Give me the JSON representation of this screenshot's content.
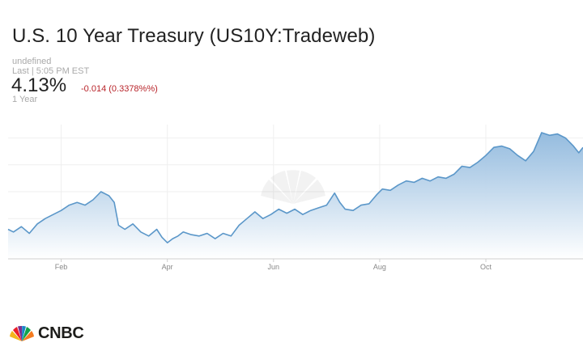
{
  "header": {
    "title": "U.S. 10 Year Treasury (US10Y:Tradeweb)",
    "source_line": "undefined",
    "last_line": "Last | 5:05 PM EST",
    "price": "4.13%",
    "change": "-0.014 (0.3378%%)",
    "range_label": "1 Year"
  },
  "colors": {
    "line": "#5b97c9",
    "fill_top": "#8fb8dd",
    "fill_bottom": "#ffffff",
    "change_negative": "#b8242a",
    "axis": "#cfcfcf"
  },
  "chart_data": {
    "type": "area",
    "title": "",
    "xlabel": "",
    "ylabel": "",
    "x_tick_labels": [
      "Feb",
      "Apr",
      "Jun",
      "Aug",
      "Oct"
    ],
    "x_tick_months": [
      1,
      3,
      5,
      7,
      9
    ],
    "x_range_months": [
      0.0,
      10.83
    ],
    "ylim": [
      3.3,
      4.3
    ],
    "grid": true,
    "legend": "none",
    "series": [
      {
        "values": [
          [
            0.0,
            3.52
          ],
          [
            0.1,
            3.5
          ],
          [
            0.25,
            3.54
          ],
          [
            0.4,
            3.49
          ],
          [
            0.55,
            3.56
          ],
          [
            0.7,
            3.6
          ],
          [
            0.85,
            3.63
          ],
          [
            1.0,
            3.66
          ],
          [
            1.15,
            3.7
          ],
          [
            1.3,
            3.72
          ],
          [
            1.45,
            3.7
          ],
          [
            1.6,
            3.74
          ],
          [
            1.75,
            3.8
          ],
          [
            1.9,
            3.77
          ],
          [
            2.0,
            3.72
          ],
          [
            2.08,
            3.55
          ],
          [
            2.2,
            3.52
          ],
          [
            2.35,
            3.56
          ],
          [
            2.5,
            3.5
          ],
          [
            2.65,
            3.47
          ],
          [
            2.8,
            3.52
          ],
          [
            2.9,
            3.46
          ],
          [
            3.0,
            3.42
          ],
          [
            3.1,
            3.45
          ],
          [
            3.2,
            3.47
          ],
          [
            3.3,
            3.5
          ],
          [
            3.45,
            3.48
          ],
          [
            3.6,
            3.47
          ],
          [
            3.75,
            3.49
          ],
          [
            3.9,
            3.45
          ],
          [
            4.05,
            3.49
          ],
          [
            4.2,
            3.47
          ],
          [
            4.35,
            3.55
          ],
          [
            4.5,
            3.6
          ],
          [
            4.65,
            3.65
          ],
          [
            4.8,
            3.6
          ],
          [
            4.95,
            3.63
          ],
          [
            5.1,
            3.67
          ],
          [
            5.25,
            3.64
          ],
          [
            5.4,
            3.67
          ],
          [
            5.55,
            3.63
          ],
          [
            5.7,
            3.66
          ],
          [
            5.85,
            3.68
          ],
          [
            6.0,
            3.7
          ],
          [
            6.15,
            3.79
          ],
          [
            6.25,
            3.72
          ],
          [
            6.35,
            3.67
          ],
          [
            6.5,
            3.66
          ],
          [
            6.65,
            3.7
          ],
          [
            6.8,
            3.71
          ],
          [
            6.95,
            3.78
          ],
          [
            7.05,
            3.82
          ],
          [
            7.2,
            3.81
          ],
          [
            7.35,
            3.85
          ],
          [
            7.5,
            3.88
          ],
          [
            7.65,
            3.87
          ],
          [
            7.8,
            3.9
          ],
          [
            7.95,
            3.88
          ],
          [
            8.1,
            3.91
          ],
          [
            8.25,
            3.9
          ],
          [
            8.4,
            3.93
          ],
          [
            8.55,
            3.99
          ],
          [
            8.7,
            3.98
          ],
          [
            8.85,
            4.02
          ],
          [
            9.0,
            4.07
          ],
          [
            9.15,
            4.13
          ],
          [
            9.3,
            4.14
          ],
          [
            9.45,
            4.12
          ],
          [
            9.6,
            4.07
          ],
          [
            9.75,
            4.03
          ],
          [
            9.9,
            4.1
          ],
          [
            10.05,
            4.24
          ],
          [
            10.2,
            4.22
          ],
          [
            10.35,
            4.23
          ],
          [
            10.5,
            4.2
          ],
          [
            10.65,
            4.14
          ],
          [
            10.75,
            4.09
          ],
          [
            10.83,
            4.13
          ]
        ]
      }
    ]
  },
  "footer": {
    "brand": "CNBC"
  }
}
